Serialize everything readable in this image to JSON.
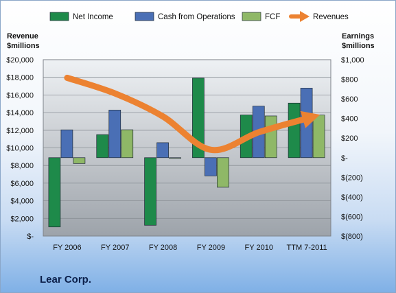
{
  "company_name": "Lear Corp.",
  "chart_data": {
    "type": "bar",
    "categories": [
      "FY 2006",
      "FY 2007",
      "FY 2008",
      "FY 2009",
      "FY 2010",
      "TTM 7-2011"
    ],
    "series": [
      {
        "name": "Net Income",
        "kind": "bar",
        "axis": "right",
        "color": "#1e8a4a",
        "values": [
          -707,
          235,
          -690,
          812,
          436,
          557
        ]
      },
      {
        "name": "Cash from Operations",
        "kind": "bar",
        "axis": "right",
        "color": "#4a6fb5",
        "values": [
          284,
          486,
          153,
          -186,
          526,
          710
        ]
      },
      {
        "name": "FCF",
        "kind": "bar",
        "axis": "right",
        "color": "#8fb867",
        "values": [
          -60,
          285,
          0,
          -302,
          426,
          435
        ]
      },
      {
        "name": "Revenues",
        "kind": "line",
        "axis": "right",
        "color": "#ec8231",
        "values": [
          815,
          655,
          420,
          80,
          260,
          400
        ]
      }
    ],
    "left_axis": {
      "label_line1": "Revenue",
      "label_line2": "$millions",
      "range": [
        0,
        20000
      ],
      "tick_labels": [
        "$-",
        "$2,000",
        "$4,000",
        "$6,000",
        "$8,000",
        "$10,000",
        "$12,000",
        "$14,000",
        "$16,000",
        "$18,000",
        "$20,000"
      ]
    },
    "right_axis": {
      "label_line1": "Earnings",
      "label_line2": "$millions",
      "range": [
        -800,
        1000
      ],
      "tick_labels": [
        "$(800)",
        "$(600)",
        "$(400)",
        "$(200)",
        "$-",
        "$200",
        "$400",
        "$600",
        "$800",
        "$1,000"
      ]
    },
    "legend_position": "top",
    "grid": true
  }
}
